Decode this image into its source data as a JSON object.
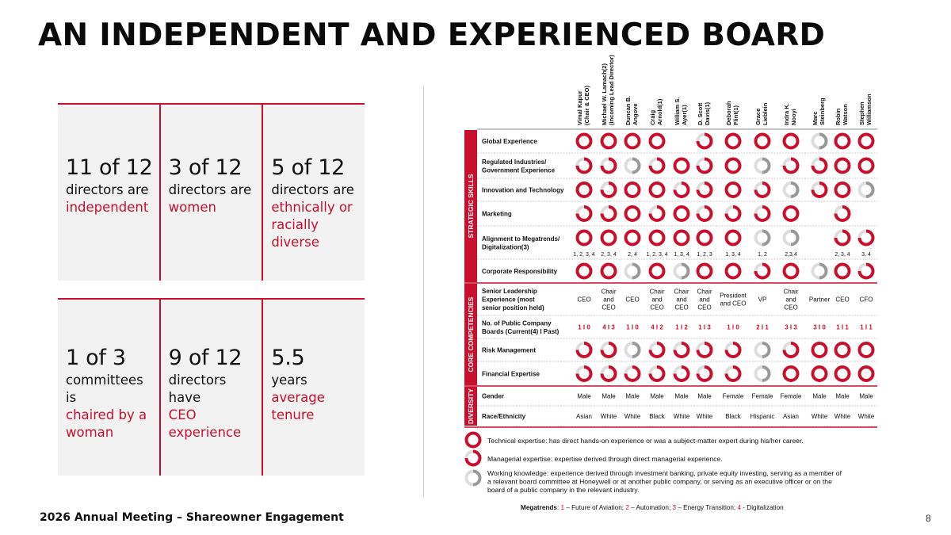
{
  "title": "AN INDEPENDENT AND EXPERIENCED BOARD",
  "footer": "2026 Annual Meeting – Shareowner Engagement",
  "page_number": "8",
  "accent_color": "#c8102e",
  "stats": [
    {
      "big": "11 of 12",
      "lines": [
        "directors are"
      ],
      "red": [
        "independent"
      ]
    },
    {
      "big": "3 of 12",
      "lines": [
        "directors are"
      ],
      "red": [
        "women"
      ]
    },
    {
      "big": "5 of 12",
      "lines": [
        "directors are"
      ],
      "red": [
        "ethnically or",
        "racially",
        "diverse"
      ]
    },
    {
      "big": "1 of 3",
      "lines": [
        "committees",
        "is"
      ],
      "red": [
        "chaired by a",
        "woman"
      ]
    },
    {
      "big": "9 of 12",
      "lines": [
        "directors",
        "have"
      ],
      "red": [
        "CEO",
        "experience"
      ]
    },
    {
      "big": "5.5",
      "lines": [
        "years"
      ],
      "red": [
        "average",
        "tenure"
      ]
    }
  ],
  "matrix": {
    "directors": [
      {
        "name": "Vimal Kapur",
        "line2": "(Chair & CEO)"
      },
      {
        "name": "Michael W. Lamach(2)",
        "line2": "(Incoming Lead Director)"
      },
      {
        "name": "Duncan B.",
        "line2": "Angove"
      },
      {
        "name": "Craig",
        "line2": "Arnold(1)"
      },
      {
        "name": "William S.",
        "line2": "Ayer(1)"
      },
      {
        "name": "D. Scott",
        "line2": "Davis(1)"
      },
      {
        "name": "Deborah",
        "line2": "Flint(1)"
      },
      {
        "name": "Grace",
        "line2": "Lieblein"
      },
      {
        "name": "Indra K.",
        "line2": "Nooyi"
      },
      {
        "name": "Marc",
        "line2": "Steinberg"
      },
      {
        "name": "Robin",
        "line2": "Watson"
      },
      {
        "name": "Stephen",
        "line2": "Williamson"
      }
    ],
    "sections": [
      {
        "label": "STRATEGIC SKILLS"
      },
      {
        "label": "CORE COMPETENCIES"
      },
      {
        "label": "DIVERSITY"
      }
    ],
    "rows": [
      {
        "label": "Global Experience",
        "levels": [
          "T",
          "T",
          "T",
          "T",
          "",
          "M",
          "T",
          "T",
          "T",
          "W",
          "T",
          "T"
        ]
      },
      {
        "label": "Regulated Industries/ Government Experience",
        "levels": [
          "M",
          "M",
          "W",
          "M",
          "T",
          "M",
          "T",
          "W",
          "M",
          "M",
          "T",
          "T"
        ]
      },
      {
        "label": "Innovation and Technology",
        "levels": [
          "T",
          "M",
          "T",
          "T",
          "M",
          "M",
          "T",
          "M",
          "W",
          "M",
          "T",
          "W"
        ]
      },
      {
        "label": "Marketing",
        "levels": [
          "M",
          "M",
          "T",
          "M",
          "T",
          "M",
          "M",
          "M",
          "T",
          "",
          "M",
          ""
        ]
      },
      {
        "label": "Alignment to Megatrends/ Digitalization(3)",
        "levels": [
          "T",
          "T",
          "T",
          "T",
          "T",
          "T",
          "T",
          "W",
          "W",
          "",
          "M",
          "M"
        ],
        "notes": [
          "1, 2, 3, 4",
          "2, 3, 4",
          "2, 4",
          "1, 2, 3, 4",
          "1, 3, 4",
          "1, 2, 3",
          "1, 3, 4",
          "1, 2",
          "2,3,4",
          "",
          "2, 3, 4",
          "3, 4"
        ]
      },
      {
        "label": "Corporate Responsibility",
        "levels": [
          "T",
          "T",
          "W",
          "T",
          "W",
          "T",
          "T",
          "M",
          "T",
          "W",
          "T",
          "M"
        ]
      },
      {
        "label": "Senior Leadership Experience (most senior position held)",
        "text": [
          "CEO",
          "Chair and CEO",
          "CEO",
          "Chair and CEO",
          "Chair and CEO",
          "Chair and CEO",
          "President and CEO",
          "VP",
          "Chair and CEO",
          "Partner",
          "CEO",
          "CFO"
        ]
      },
      {
        "label": "No. of Public Company Boards (Current(4) I Past)",
        "text": [
          "1 I 0",
          "4 I 3",
          "1 I 0",
          "4 I 2",
          "1 I 2",
          "1 I 3",
          "1 I 0",
          "2 I 1",
          "3 I 3",
          "3 I 0",
          "1 I 1",
          "1 I 1"
        ]
      },
      {
        "label": "Risk Management",
        "levels": [
          "M",
          "M",
          "W",
          "M",
          "M",
          "M",
          "M",
          "W",
          "M",
          "T",
          "T",
          "T"
        ]
      },
      {
        "label": "Financial Expertise",
        "levels": [
          "M",
          "M",
          "M",
          "M",
          "M",
          "M",
          "M",
          "W",
          "T",
          "T",
          "T",
          "T"
        ]
      },
      {
        "label": "Gender",
        "text": [
          "Male",
          "Male",
          "Male",
          "Male",
          "Male",
          "Male",
          "Female",
          "Female",
          "Female",
          "Male",
          "Male",
          "Male"
        ]
      },
      {
        "label": "Race/Ethnicity",
        "text": [
          "Asian",
          "White",
          "White",
          "Black",
          "White",
          "White",
          "Black",
          "Hispanic",
          "Asian",
          "White",
          "White",
          "White"
        ]
      }
    ],
    "legend": [
      {
        "level": "T",
        "text": "Technical expertise: has direct hands-on experience or was a subject-matter expert during his/her career."
      },
      {
        "level": "M",
        "text": "Managerial expertise: expertise derived through direct managerial experience."
      },
      {
        "level": "W",
        "text": "Working knowledge: experience derived through investment banking, private equity investing, serving as a member of a relevant board committee at Honeywell or at another public company, or serving as an executive officer or on the board of a public company in the relevant industry."
      }
    ],
    "megatrends": {
      "label": "Megatrends",
      "items": [
        {
          "num": "1",
          "text": "Future of Aviation"
        },
        {
          "num": "2",
          "text": "Automation"
        },
        {
          "num": "3",
          "text": "Energy Transition"
        },
        {
          "num": "4",
          "text": "Digitalization"
        }
      ]
    }
  }
}
